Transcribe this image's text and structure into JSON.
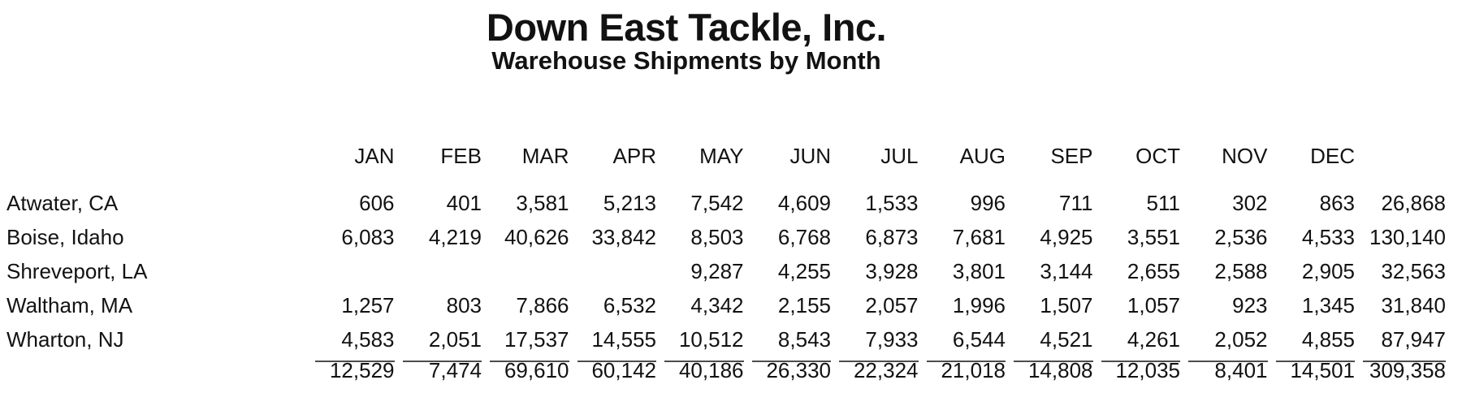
{
  "header": {
    "title": "Down East Tackle, Inc.",
    "subtitle": "Warehouse Shipments by Month"
  },
  "table": {
    "months": [
      "JAN",
      "FEB",
      "MAR",
      "APR",
      "MAY",
      "JUN",
      "JUL",
      "AUG",
      "SEP",
      "OCT",
      "NOV",
      "DEC"
    ],
    "rows": [
      {
        "location": "Atwater, CA",
        "values": [
          "606",
          "401",
          "3,581",
          "5,213",
          "7,542",
          "4,609",
          "1,533",
          "996",
          "711",
          "511",
          "302",
          "863"
        ],
        "total": "26,868"
      },
      {
        "location": "Boise, Idaho",
        "values": [
          "6,083",
          "4,219",
          "40,626",
          "33,842",
          "8,503",
          "6,768",
          "6,873",
          "7,681",
          "4,925",
          "3,551",
          "2,536",
          "4,533"
        ],
        "total": "130,140"
      },
      {
        "location": "Shreveport, LA",
        "values": [
          "",
          "",
          "",
          "",
          "9,287",
          "4,255",
          "3,928",
          "3,801",
          "3,144",
          "2,655",
          "2,588",
          "2,905"
        ],
        "total": "32,563"
      },
      {
        "location": "Waltham, MA",
        "values": [
          "1,257",
          "803",
          "7,866",
          "6,532",
          "4,342",
          "2,155",
          "2,057",
          "1,996",
          "1,507",
          "1,057",
          "923",
          "1,345"
        ],
        "total": "31,840"
      },
      {
        "location": "Wharton, NJ",
        "values": [
          "4,583",
          "2,051",
          "17,537",
          "14,555",
          "10,512",
          "8,543",
          "7,933",
          "6,544",
          "4,521",
          "4,261",
          "2,052",
          "4,855"
        ],
        "total": "87,947"
      }
    ],
    "totals": {
      "values": [
        "12,529",
        "7,474",
        "69,610",
        "60,142",
        "40,186",
        "26,330",
        "22,324",
        "21,018",
        "14,808",
        "12,035",
        "8,401",
        "14,501"
      ],
      "total": "309,358"
    }
  },
  "colors": {
    "background": "#ffffff",
    "text": "#121212",
    "rule": "#4d4d4d"
  }
}
